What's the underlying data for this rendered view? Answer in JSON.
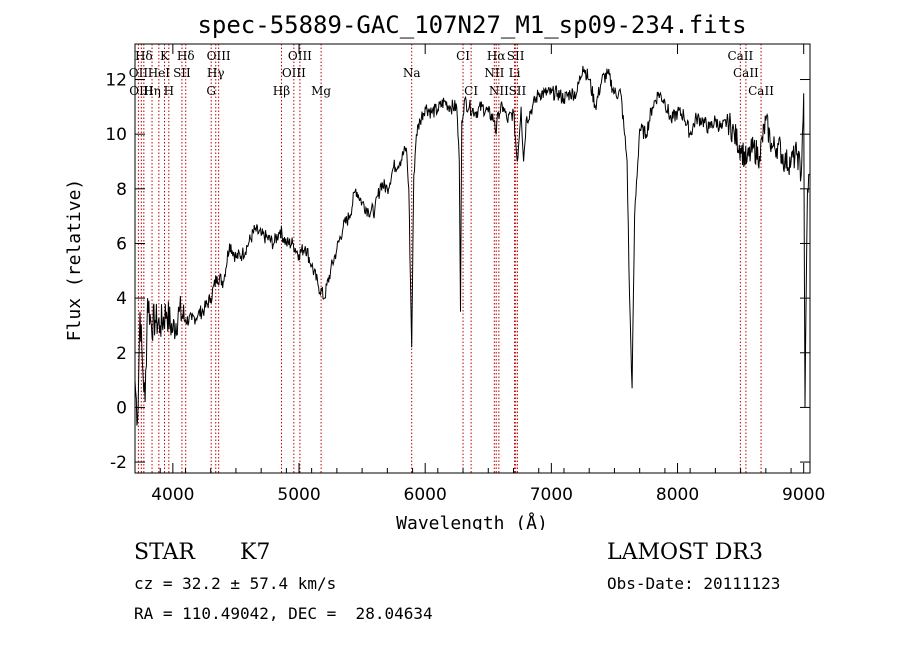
{
  "chart_data": {
    "type": "line",
    "title": "spec-55889-GAC_107N27_M1_sp09-234.fits",
    "xlabel": "Wavelength (Å)",
    "ylabel": "Flux (relative)",
    "xlim": [
      3700,
      9050
    ],
    "ylim": [
      -2.4,
      13.3
    ],
    "xticks": [
      4000,
      5000,
      6000,
      7000,
      8000,
      9000
    ],
    "yticks": [
      -2,
      0,
      2,
      4,
      6,
      8,
      10,
      12
    ],
    "series": [
      {
        "name": "spectrum",
        "x": [
          3700,
          3720,
          3740,
          3760,
          3780,
          3800,
          3830,
          3860,
          3900,
          3950,
          4000,
          4050,
          4100,
          4150,
          4200,
          4250,
          4300,
          4350,
          4400,
          4450,
          4500,
          4550,
          4600,
          4650,
          4700,
          4750,
          4800,
          4850,
          4900,
          4950,
          5000,
          5050,
          5100,
          5150,
          5200,
          5250,
          5300,
          5350,
          5400,
          5450,
          5500,
          5550,
          5600,
          5650,
          5700,
          5750,
          5800,
          5850,
          5870,
          5893,
          5910,
          5930,
          5960,
          6000,
          6050,
          6100,
          6150,
          6200,
          6250,
          6270,
          6280,
          6290,
          6310,
          6350,
          6400,
          6450,
          6500,
          6550,
          6563,
          6580,
          6620,
          6650,
          6700,
          6730,
          6760,
          6780,
          6800,
          6850,
          6900,
          6950,
          7000,
          7050,
          7100,
          7150,
          7200,
          7250,
          7300,
          7350,
          7400,
          7450,
          7500,
          7550,
          7580,
          7600,
          7620,
          7640,
          7660,
          7700,
          7750,
          7800,
          7850,
          7900,
          7950,
          8000,
          8050,
          8100,
          8150,
          8200,
          8250,
          8300,
          8350,
          8400,
          8450,
          8500,
          8550,
          8600,
          8650,
          8700,
          8750,
          8800,
          8850,
          8900,
          8950,
          8980,
          9000,
          9010,
          9030,
          9050
        ],
        "y": [
          1.0,
          -0.5,
          3.5,
          1.5,
          0.2,
          4.0,
          3.0,
          3.2,
          3.0,
          3.5,
          2.8,
          3.5,
          3.2,
          3.2,
          3.4,
          3.6,
          4.0,
          4.8,
          4.6,
          6.0,
          5.5,
          5.6,
          6.0,
          6.5,
          6.3,
          6.2,
          6.0,
          6.5,
          6.0,
          6.0,
          5.6,
          5.9,
          5.2,
          4.5,
          4.0,
          5.0,
          5.8,
          6.6,
          7.0,
          8.0,
          7.5,
          7.2,
          7.2,
          8.2,
          8.0,
          8.8,
          9.0,
          9.5,
          8.0,
          2.2,
          8.5,
          10.0,
          10.5,
          11.0,
          10.8,
          10.9,
          11.2,
          11.0,
          11.0,
          9.0,
          3.5,
          10.5,
          11.2,
          11.0,
          10.8,
          11.0,
          10.8,
          10.5,
          10.0,
          10.8,
          11.0,
          10.5,
          10.8,
          9.0,
          11.0,
          9.0,
          10.5,
          11.0,
          11.5,
          11.5,
          11.5,
          11.5,
          11.3,
          11.5,
          11.5,
          12.5,
          12.0,
          11.0,
          12.0,
          12.2,
          11.5,
          11.5,
          10.0,
          9.0,
          4.0,
          0.7,
          7.0,
          10.2,
          10.0,
          11.0,
          11.5,
          11.2,
          10.5,
          10.8,
          10.7,
          10.0,
          10.6,
          10.5,
          10.2,
          10.5,
          10.2,
          10.5,
          10.0,
          9.5,
          9.0,
          9.5,
          9.2,
          10.5,
          9.5,
          9.6,
          9.0,
          9.0,
          9.3,
          8.5,
          11.5,
          0.0,
          8.0,
          8.5
        ]
      }
    ],
    "spectral_lines": [
      {
        "label": "Hδ",
        "wavelength": 3770,
        "row": 0
      },
      {
        "label": "K",
        "wavelength": 3934,
        "row": 0
      },
      {
        "label": "Hδ",
        "wavelength": 4102,
        "row": 0
      },
      {
        "label": "OIII",
        "wavelength": 4363,
        "row": 0
      },
      {
        "label": "OIII",
        "wavelength": 5007,
        "row": 0
      },
      {
        "label": "CI",
        "wavelength": 6300,
        "row": 0
      },
      {
        "label": "Hα",
        "wavelength": 6563,
        "row": 0
      },
      {
        "label": "SII",
        "wavelength": 6717,
        "row": 0
      },
      {
        "label": "CaII",
        "wavelength": 8498,
        "row": 0
      },
      {
        "label": "OII",
        "wavelength": 3727,
        "row": 1
      },
      {
        "label": "HeI",
        "wavelength": 3889,
        "row": 1
      },
      {
        "label": "SII",
        "wavelength": 4072,
        "row": 1
      },
      {
        "label": "Hγ",
        "wavelength": 4340,
        "row": 1
      },
      {
        "label": "OIII",
        "wavelength": 4959,
        "row": 1
      },
      {
        "label": "Na",
        "wavelength": 5893,
        "row": 1
      },
      {
        "label": "NII",
        "wavelength": 6548,
        "row": 1
      },
      {
        "label": "Li",
        "wavelength": 6708,
        "row": 1
      },
      {
        "label": "CaII",
        "wavelength": 8542,
        "row": 1
      },
      {
        "label": "OIII",
        "wavelength": 3750,
        "row": 2
      },
      {
        "label": "Hη",
        "wavelength": 3835,
        "row": 2
      },
      {
        "label": "H",
        "wavelength": 3968,
        "row": 2
      },
      {
        "label": "G",
        "wavelength": 4304,
        "row": 2
      },
      {
        "label": "Hβ",
        "wavelength": 4861,
        "row": 2
      },
      {
        "label": "Mg",
        "wavelength": 5175,
        "row": 2
      },
      {
        "label": "CI",
        "wavelength": 6364,
        "row": 2
      },
      {
        "label": "NII",
        "wavelength": 6584,
        "row": 2
      },
      {
        "label": "SII",
        "wavelength": 6731,
        "row": 2
      },
      {
        "label": "CaII",
        "wavelength": 8662,
        "row": 2
      }
    ]
  },
  "info": {
    "class": "STAR",
    "subclass": "K7",
    "survey": "LAMOST DR3",
    "cz": "cz = 32.2 ± 57.4 km/s",
    "obs_date": "Obs-Date: 20111123",
    "coords": "RA = 110.49042, DEC =  28.04634"
  },
  "colors": {
    "line_marker": "#c00000",
    "spectrum": "#000000"
  }
}
